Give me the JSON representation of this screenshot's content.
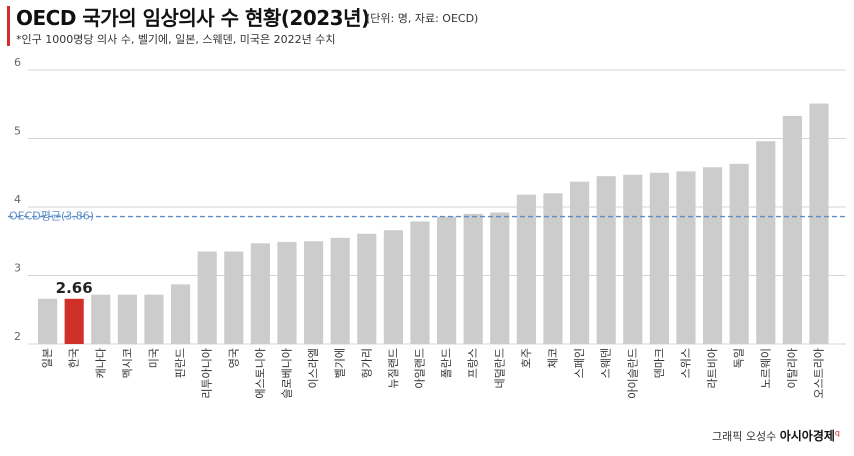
{
  "header": {
    "title": "OECD 국가의 임상의사 수 현황(2023년)",
    "unit": "(단위: 명, 자료: OECD)",
    "subtitle": "*인구 1000명당 의사 수, 벨기에, 일본, 스웨덴, 미국은 2022년 수치"
  },
  "credit": {
    "author": "그래픽 오성수",
    "brand": "아시아경제"
  },
  "colors": {
    "bar": "#cccccc",
    "highlight": "#d0302a",
    "average_line": "#5b8ec9",
    "grid": "#d4d4d4",
    "axis_text": "#666666"
  },
  "chart_data": {
    "type": "bar",
    "title": "OECD 국가의 임상의사 수 현황(2023년)",
    "categories": [
      "일본",
      "한국",
      "캐나다",
      "멕시코",
      "미국",
      "핀란드",
      "리투아니아",
      "영국",
      "에스토니아",
      "슬로베니아",
      "이스라엘",
      "벨기에",
      "헝가리",
      "뉴질랜드",
      "아일랜드",
      "폴란드",
      "프랑스",
      "네덜란드",
      "호주",
      "체코",
      "스페인",
      "스웨덴",
      "아이슬란드",
      "덴마크",
      "스위스",
      "라트비아",
      "독일",
      "노르웨이",
      "이탈리아",
      "오스트리아"
    ],
    "values": [
      2.66,
      2.66,
      2.72,
      2.72,
      2.72,
      2.87,
      3.35,
      3.35,
      3.47,
      3.49,
      3.5,
      3.55,
      3.61,
      3.66,
      3.79,
      3.86,
      3.9,
      3.92,
      4.18,
      4.2,
      4.37,
      4.45,
      4.47,
      4.5,
      4.52,
      4.58,
      4.63,
      4.96,
      5.33,
      5.51
    ],
    "highlight_category": "한국",
    "highlight_label": "2.66",
    "yticks": [
      "2",
      "3",
      "4",
      "5",
      "6"
    ],
    "ylim": [
      2,
      6
    ],
    "grid": true,
    "reference_line": {
      "label": "OECD평균(3.86)",
      "value": 3.86
    }
  }
}
